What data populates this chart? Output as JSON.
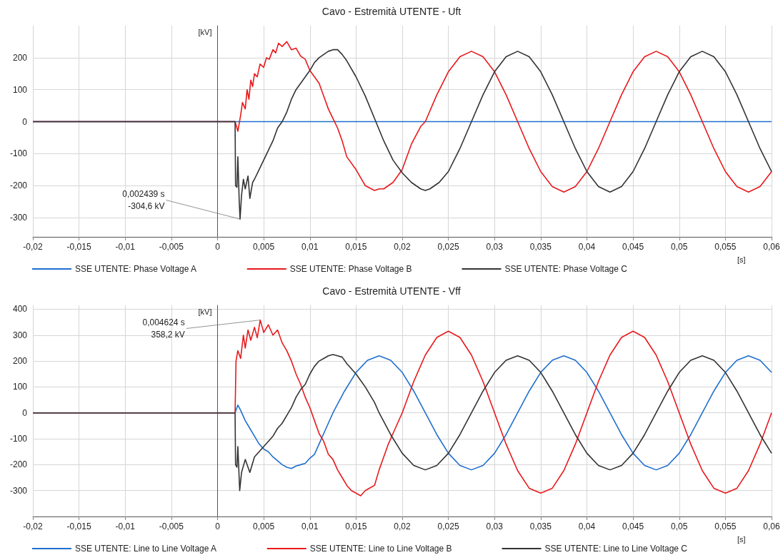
{
  "chart_data": [
    {
      "type": "line",
      "title": "Cavo - Estremità UTENTE - Uft",
      "xlabel": "[s]",
      "ylabel": "[kV]",
      "xlim": [
        -0.02,
        0.06
      ],
      "ylim": [
        -360,
        300
      ],
      "grid": true,
      "legend": "bottom",
      "marker": "none",
      "line_style": "solid",
      "xticks": [
        {
          "value": -0.02,
          "label": "-0,02"
        },
        {
          "value": -0.015,
          "label": "-0,015"
        },
        {
          "value": -0.01,
          "label": "-0,01"
        },
        {
          "value": -0.005,
          "label": "-0,005"
        },
        {
          "value": 0,
          "label": "0"
        },
        {
          "value": 0.005,
          "label": "0,005"
        },
        {
          "value": 0.01,
          "label": "0,01"
        },
        {
          "value": 0.015,
          "label": "0,015"
        },
        {
          "value": 0.02,
          "label": "0,02"
        },
        {
          "value": 0.025,
          "label": "0,025"
        },
        {
          "value": 0.03,
          "label": "0,03"
        },
        {
          "value": 0.035,
          "label": "0,035"
        },
        {
          "value": 0.04,
          "label": "0,04"
        },
        {
          "value": 0.045,
          "label": "0,045"
        },
        {
          "value": 0.05,
          "label": "0,05"
        },
        {
          "value": 0.055,
          "label": "0,055"
        },
        {
          "value": 0.06,
          "label": "0,06"
        }
      ],
      "yticks": [
        -300,
        -200,
        -100,
        0,
        100,
        200
      ],
      "annotations": [
        {
          "text": "0,002439 s\n-304,6 kV",
          "x": 0.002439,
          "y": -304.6
        }
      ],
      "series": [
        {
          "name": "SSE UTENTE: Phase Voltage A",
          "color": "#1f6fcf",
          "x": [
            -0.02,
            0.002,
            0.06
          ],
          "values": [
            0,
            0,
            0
          ]
        },
        {
          "name": "SSE UTENTE: Phase Voltage B",
          "color": "#e8191c",
          "x": [
            -0.02,
            0.0019,
            0.002,
            0.0022,
            0.0025,
            0.0027,
            0.003,
            0.0032,
            0.0034,
            0.0036,
            0.0038,
            0.004,
            0.0043,
            0.0046,
            0.005,
            0.0053,
            0.0056,
            0.006,
            0.0063,
            0.0066,
            0.007,
            0.0075,
            0.008,
            0.0085,
            0.009,
            0.0095,
            0.01,
            0.0105,
            0.011,
            0.0115,
            0.012,
            0.0125,
            0.013,
            0.0135,
            0.014,
            0.015,
            0.0155,
            0.016,
            0.017,
            0.0175,
            0.018,
            0.019,
            0.02,
            0.021,
            0.022,
            0.0225,
            0.02375,
            0.025,
            0.02625,
            0.0275,
            0.02875,
            0.03,
            0.03125,
            0.0325,
            0.03375,
            0.035,
            0.03625,
            0.0375,
            0.03875,
            0.04,
            0.04125,
            0.0425,
            0.04375,
            0.045,
            0.04625,
            0.0475,
            0.04875,
            0.05,
            0.05125,
            0.0525,
            0.05375,
            0.055,
            0.05625,
            0.0575,
            0.05875,
            0.06
          ],
          "values": [
            0,
            0,
            -10,
            -30,
            20,
            60,
            40,
            100,
            70,
            130,
            110,
            150,
            140,
            180,
            170,
            200,
            195,
            225,
            215,
            245,
            235,
            250,
            225,
            230,
            205,
            195,
            160,
            140,
            120,
            80,
            40,
            10,
            -20,
            -60,
            -110,
            -150,
            -175,
            -200,
            -215,
            -210,
            -210,
            -190,
            -150,
            -70,
            -15,
            0,
            84,
            156,
            203,
            220,
            203,
            156,
            84,
            0,
            -84,
            -156,
            -203,
            -220,
            -203,
            -156,
            -84,
            0,
            84,
            156,
            203,
            220,
            203,
            156,
            84,
            0,
            -84,
            -156,
            -203,
            -220,
            -203,
            -156
          ]
        },
        {
          "name": "SSE UTENTE: Phase Voltage C",
          "color": "#333333",
          "x": [
            -0.02,
            0.0019,
            0.00195,
            0.0021,
            0.0022,
            0.00235,
            0.002439,
            0.0026,
            0.0028,
            0.003,
            0.0033,
            0.0035,
            0.0038,
            0.004,
            0.0045,
            0.005,
            0.0055,
            0.006,
            0.0065,
            0.007,
            0.0075,
            0.008,
            0.0085,
            0.009,
            0.0095,
            0.01,
            0.0105,
            0.011,
            0.0115,
            0.012,
            0.0125,
            0.013,
            0.0135,
            0.014,
            0.015,
            0.016,
            0.017,
            0.018,
            0.019,
            0.02,
            0.021,
            0.022,
            0.0225,
            0.023,
            0.024,
            0.025,
            0.02625,
            0.0275,
            0.02875,
            0.03,
            0.03125,
            0.0325,
            0.03375,
            0.035,
            0.03625,
            0.0375,
            0.03875,
            0.04,
            0.04125,
            0.0425,
            0.04375,
            0.045,
            0.04625,
            0.0475,
            0.04875,
            0.05,
            0.05125,
            0.0525,
            0.05375,
            0.055,
            0.05625,
            0.0575,
            0.05875,
            0.06
          ],
          "values": [
            0,
            0,
            -200,
            -205,
            -110,
            -250,
            -304.6,
            -230,
            -180,
            -210,
            -170,
            -240,
            -190,
            -180,
            -150,
            -120,
            -90,
            -60,
            -20,
            0,
            30,
            70,
            100,
            120,
            140,
            160,
            185,
            200,
            210,
            220,
            225,
            225,
            210,
            190,
            140,
            80,
            10,
            -60,
            -120,
            -160,
            -190,
            -210,
            -215,
            -210,
            -190,
            -156,
            -84,
            0,
            84,
            156,
            203,
            220,
            203,
            156,
            84,
            0,
            -84,
            -156,
            -203,
            -220,
            -203,
            -156,
            -84,
            0,
            84,
            156,
            203,
            220,
            203,
            156,
            84,
            0,
            -84,
            -156
          ]
        }
      ]
    },
    {
      "type": "line",
      "title": "Cavo - Estremità UTENTE - Vff",
      "xlabel": "[s]",
      "ylabel": "[kV]",
      "xlim": [
        -0.02,
        0.06
      ],
      "ylim": [
        -400,
        415
      ],
      "grid": true,
      "legend": "bottom",
      "marker": "none",
      "line_style": "solid",
      "xticks": [
        {
          "value": -0.02,
          "label": "-0,02"
        },
        {
          "value": -0.015,
          "label": "-0,015"
        },
        {
          "value": -0.01,
          "label": "-0,01"
        },
        {
          "value": -0.005,
          "label": "-0,005"
        },
        {
          "value": 0,
          "label": "0"
        },
        {
          "value": 0.005,
          "label": "0,005"
        },
        {
          "value": 0.01,
          "label": "0,01"
        },
        {
          "value": 0.015,
          "label": "0,015"
        },
        {
          "value": 0.02,
          "label": "0,02"
        },
        {
          "value": 0.025,
          "label": "0,025"
        },
        {
          "value": 0.03,
          "label": "0,03"
        },
        {
          "value": 0.035,
          "label": "0,035"
        },
        {
          "value": 0.04,
          "label": "0,04"
        },
        {
          "value": 0.045,
          "label": "0,045"
        },
        {
          "value": 0.05,
          "label": "0,05"
        },
        {
          "value": 0.055,
          "label": "0,055"
        },
        {
          "value": 0.06,
          "label": "0,06"
        }
      ],
      "yticks": [
        -300,
        -200,
        -100,
        0,
        100,
        200,
        300,
        400
      ],
      "annotations": [
        {
          "text": "0,004624 s\n358,2 kV",
          "x": 0.004624,
          "y": 358.2
        }
      ],
      "series": [
        {
          "name": "SSE UTENTE: Line to Line Voltage A",
          "color": "#1f6fcf",
          "x": [
            -0.02,
            0.0019,
            0.0022,
            0.0025,
            0.003,
            0.0035,
            0.004,
            0.0045,
            0.005,
            0.0055,
            0.006,
            0.0065,
            0.007,
            0.0075,
            0.008,
            0.0085,
            0.009,
            0.0095,
            0.01,
            0.0105,
            0.011,
            0.0115,
            0.012,
            0.0125,
            0.01375,
            0.015,
            0.01625,
            0.0175,
            0.01875,
            0.02,
            0.02125,
            0.0225,
            0.02375,
            0.025,
            0.02625,
            0.0275,
            0.02875,
            0.03,
            0.03125,
            0.0325,
            0.03375,
            0.035,
            0.03625,
            0.0375,
            0.03875,
            0.04,
            0.04125,
            0.0425,
            0.04375,
            0.045,
            0.04625,
            0.0475,
            0.04875,
            0.05,
            0.05125,
            0.0525,
            0.05375,
            0.055,
            0.05625,
            0.0575,
            0.05875,
            0.06
          ],
          "values": [
            0,
            0,
            30,
            10,
            -30,
            -60,
            -90,
            -120,
            -140,
            -150,
            -170,
            -185,
            -200,
            -210,
            -215,
            -205,
            -200,
            -195,
            -175,
            -160,
            -120,
            -80,
            -40,
            0,
            84,
            156,
            203,
            220,
            203,
            156,
            84,
            0,
            -84,
            -156,
            -203,
            -220,
            -203,
            -156,
            -84,
            0,
            84,
            156,
            203,
            220,
            203,
            156,
            84,
            0,
            -84,
            -156,
            -203,
            -220,
            -203,
            -156,
            -84,
            0,
            84,
            156,
            203,
            220,
            203,
            156
          ]
        },
        {
          "name": "SSE UTENTE: Line to Line Voltage B",
          "color": "#e8191c",
          "x": [
            -0.02,
            0.0019,
            0.002,
            0.0022,
            0.0025,
            0.0028,
            0.003,
            0.0033,
            0.0036,
            0.004,
            0.0043,
            0.004624,
            0.005,
            0.0055,
            0.006,
            0.0065,
            0.007,
            0.0075,
            0.008,
            0.0085,
            0.009,
            0.0095,
            0.01,
            0.0105,
            0.011,
            0.0115,
            0.012,
            0.0125,
            0.013,
            0.0135,
            0.014,
            0.0145,
            0.015,
            0.0155,
            0.016,
            0.0165,
            0.017,
            0.0175,
            0.018,
            0.0185,
            0.019,
            0.0195,
            0.02,
            0.02125,
            0.0225,
            0.02375,
            0.025,
            0.02625,
            0.0275,
            0.02875,
            0.03,
            0.03125,
            0.0325,
            0.03375,
            0.035,
            0.03625,
            0.0375,
            0.03875,
            0.04,
            0.04125,
            0.0425,
            0.04375,
            0.045,
            0.04625,
            0.0475,
            0.04875,
            0.05,
            0.05125,
            0.0525,
            0.05375,
            0.055,
            0.05625,
            0.0575,
            0.05875,
            0.06
          ],
          "values": [
            0,
            0,
            200,
            240,
            210,
            300,
            250,
            320,
            280,
            330,
            290,
            358.2,
            310,
            340,
            300,
            320,
            270,
            240,
            200,
            150,
            110,
            60,
            20,
            -30,
            -80,
            -110,
            -160,
            -180,
            -220,
            -250,
            -280,
            -300,
            -310,
            -320,
            -300,
            -290,
            -280,
            -220,
            -170,
            -120,
            -80,
            -40,
            0,
            121,
            223,
            291,
            315,
            291,
            223,
            121,
            0,
            -121,
            -223,
            -291,
            -310,
            -291,
            -223,
            -121,
            0,
            121,
            223,
            291,
            315,
            291,
            223,
            121,
            0,
            -121,
            -223,
            -291,
            -310,
            -291,
            -223,
            -121,
            0
          ]
        },
        {
          "name": "SSE UTENTE: Line to Line Voltage C",
          "color": "#333333",
          "x": [
            -0.02,
            0.0019,
            0.00195,
            0.0021,
            0.0022,
            0.0024,
            0.0026,
            0.003,
            0.0035,
            0.004,
            0.0045,
            0.005,
            0.0055,
            0.006,
            0.0065,
            0.007,
            0.0075,
            0.008,
            0.0085,
            0.009,
            0.0095,
            0.01,
            0.0105,
            0.011,
            0.0115,
            0.012,
            0.0125,
            0.013,
            0.0135,
            0.014,
            0.015,
            0.016,
            0.017,
            0.0175,
            0.01875,
            0.02,
            0.02125,
            0.0225,
            0.02375,
            0.025,
            0.02625,
            0.0275,
            0.02875,
            0.03,
            0.03125,
            0.0325,
            0.03375,
            0.035,
            0.03625,
            0.0375,
            0.03875,
            0.04,
            0.04125,
            0.0425,
            0.04375,
            0.045,
            0.04625,
            0.0475,
            0.04875,
            0.05,
            0.05125,
            0.0525,
            0.05375,
            0.055,
            0.05625,
            0.0575,
            0.05875,
            0.06
          ],
          "values": [
            0,
            0,
            -200,
            -210,
            -130,
            -300,
            -230,
            -180,
            -230,
            -170,
            -150,
            -130,
            -110,
            -90,
            -60,
            -40,
            -10,
            20,
            60,
            90,
            110,
            150,
            180,
            200,
            210,
            220,
            225,
            220,
            215,
            190,
            150,
            100,
            40,
            0,
            -84,
            -156,
            -203,
            -220,
            -203,
            -156,
            -84,
            0,
            84,
            156,
            203,
            220,
            203,
            156,
            84,
            0,
            -84,
            -156,
            -203,
            -220,
            -203,
            -156,
            -84,
            0,
            84,
            156,
            203,
            220,
            203,
            156,
            84,
            0,
            -84,
            -156
          ]
        }
      ]
    }
  ]
}
